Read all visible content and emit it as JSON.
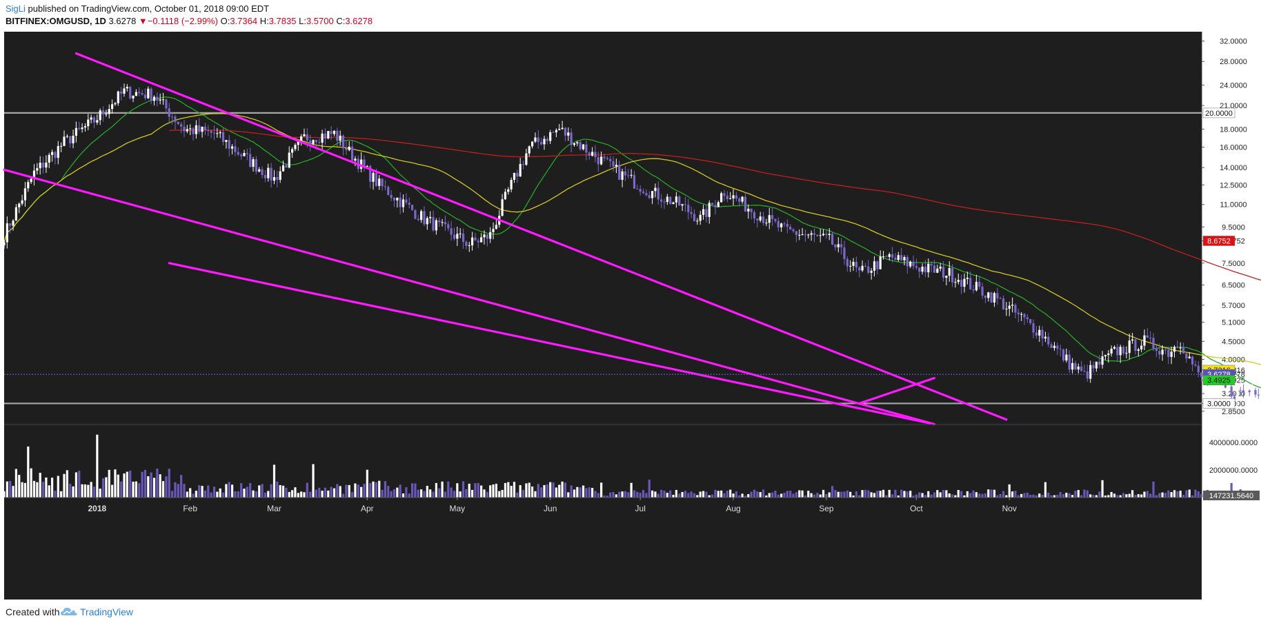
{
  "header": {
    "author": "SigLi",
    "published_text": "published on TradingView.com, October 01, 2018 09:00 EDT",
    "symbol": "BITFINEX:OMGUSD, 1D",
    "last": "3.6278",
    "change_arrow": "▼",
    "change": "−0.1118 (−2.99%)",
    "o_label": "O:",
    "o_value": "3.7364",
    "h_label": "H:",
    "h_value": "3.7835",
    "l_label": "L:",
    "l_value": "3.5700",
    "c_label": "C:",
    "c_value": "3.6278"
  },
  "footer": {
    "created_with": "Created with",
    "brand": "TradingView"
  },
  "colors": {
    "background": "#1e1e1e",
    "candle_up": "#ffffff",
    "candle_down": "#7b68c8",
    "ma_fast": "#27a827",
    "ma_mid": "#d4c820",
    "ma_slow": "#c0201c",
    "trendline": "#ff19ff",
    "hline": "#a8a8a8"
  },
  "chart_data": {
    "type": "candlestick",
    "price_axis": {
      "scale": "log",
      "ticks": [
        "32.0000",
        "28.0000",
        "24.0000",
        "21.0000",
        "18.0000",
        "16.0000",
        "14.0000",
        "12.5000",
        "11.0000",
        "9.5000",
        "8.6752",
        "7.5000",
        "6.5000",
        "5.7000",
        "5.1000",
        "4.5000",
        "4.0000",
        "3.7316",
        "3.6278",
        "3.4925",
        "3.2000",
        "3.0000",
        "2.8500"
      ]
    },
    "time_axis": {
      "labels": [
        "2018",
        "Feb",
        "Mar",
        "Apr",
        "May",
        "Jun",
        "Jul",
        "Aug",
        "Sep",
        "Oct",
        "Nov"
      ]
    },
    "price_labels": [
      {
        "value": "20.0000",
        "color": "#ffffff",
        "text": "#111111"
      },
      {
        "value": "8.6752",
        "color": "#e01010",
        "text": "#ffffff"
      },
      {
        "value": "3.7316",
        "color": "#f0e020",
        "text": "#111111"
      },
      {
        "value": "3.6278",
        "color": "#5a50c0",
        "text": "#ffffff"
      },
      {
        "value": "3.4925",
        "color": "#22cc22",
        "text": "#111111"
      },
      {
        "value": "3.0000",
        "color": "#ffffff",
        "text": "#111111"
      }
    ],
    "horizontal_levels": [
      20.0,
      3.0
    ],
    "last_price": 3.6278,
    "volume_axis": {
      "ticks": [
        "4000000.0000",
        "2000000.0000"
      ],
      "last_label": "147231.5640"
    },
    "moving_averages": [
      {
        "color": "#27a827",
        "last": 3.4925
      },
      {
        "color": "#d4c820",
        "last": 3.7316
      },
      {
        "color": "#c0201c",
        "last": 8.6752
      }
    ],
    "trendlines": [
      {
        "from": [
          "2017-12-25",
          29.5
        ],
        "to": [
          "2018-10-31",
          2.7
        ]
      },
      {
        "from": [
          "2017-12-01",
          13.8
        ],
        "to": [
          "2018-10-07",
          2.62
        ]
      },
      {
        "from": [
          "2018-01-25",
          7.5
        ],
        "to": [
          "2018-10-07",
          2.62
        ]
      },
      {
        "from": [
          "2018-09-12",
          3.0
        ],
        "to": [
          "2018-10-07",
          3.54
        ]
      }
    ]
  }
}
